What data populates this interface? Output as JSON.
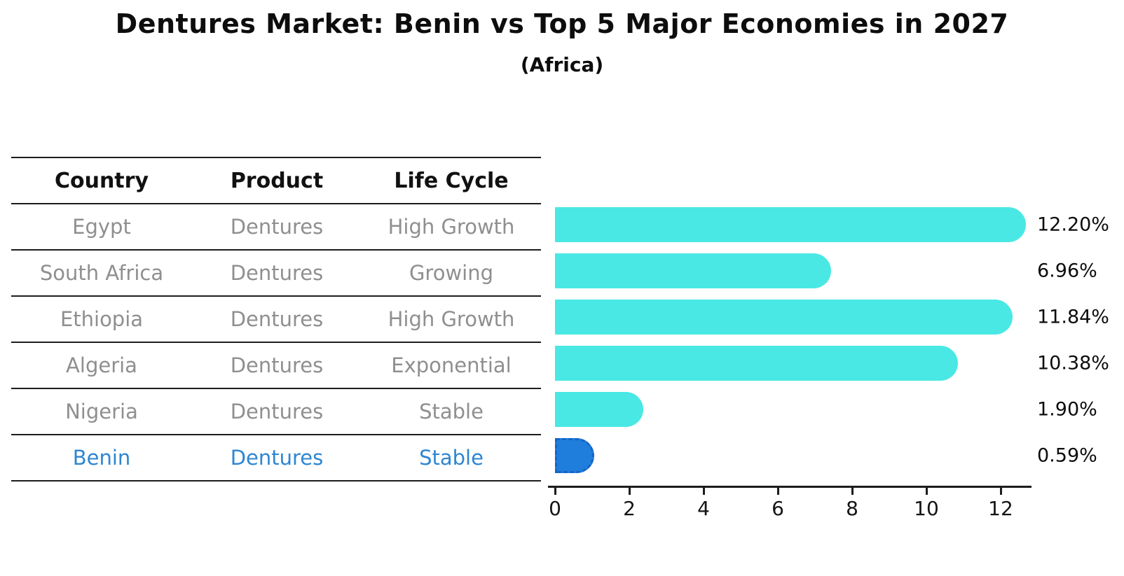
{
  "header": {
    "title": "Dentures Market: Benin vs Top 5 Major Economies in 2027",
    "subtitle": "(Africa)"
  },
  "table": {
    "headers": [
      "Country",
      "Product",
      "Life Cycle"
    ],
    "rows": [
      {
        "country": "Egypt",
        "product": "Dentures",
        "life_cycle": "High Growth",
        "highlighted": false
      },
      {
        "country": "South Africa",
        "product": "Dentures",
        "life_cycle": "Growing",
        "highlighted": false
      },
      {
        "country": "Ethiopia",
        "product": "Dentures",
        "life_cycle": "High Growth",
        "highlighted": false
      },
      {
        "country": "Algeria",
        "product": "Dentures",
        "life_cycle": "Exponential",
        "highlighted": false
      },
      {
        "country": "Nigeria",
        "product": "Dentures",
        "life_cycle": "Stable",
        "highlighted": false
      },
      {
        "country": "Benin",
        "product": "Dentures",
        "life_cycle": "Stable",
        "highlighted": true
      }
    ]
  },
  "chart_data": {
    "type": "bar",
    "orientation": "horizontal",
    "title": "Dentures Market: Benin vs Top 5 Major Economies in 2027",
    "subtitle": "(Africa)",
    "categories": [
      "Egypt",
      "South Africa",
      "Ethiopia",
      "Algeria",
      "Nigeria",
      "Benin"
    ],
    "values": [
      12.2,
      6.96,
      11.84,
      10.38,
      1.9,
      0.59
    ],
    "value_labels": [
      "12.20%",
      "6.96%",
      "11.84%",
      "10.38%",
      "1.90%",
      "0.59%"
    ],
    "unit": "%",
    "xlim": [
      0,
      13
    ],
    "xticks": [
      0,
      2,
      4,
      6,
      8,
      10,
      12
    ],
    "grid": false,
    "legend": false,
    "highlight_index": 5,
    "colors": {
      "bar": "#4AE8E4",
      "highlight_bar": "#1F7EDC",
      "highlight_border": "#1565C8",
      "highlight_text": "#2E86D1",
      "row_text": "#8F8F8F",
      "header_text": "#111111",
      "axis": "#1C1C1C",
      "value_label": "#0D0D0D"
    }
  }
}
